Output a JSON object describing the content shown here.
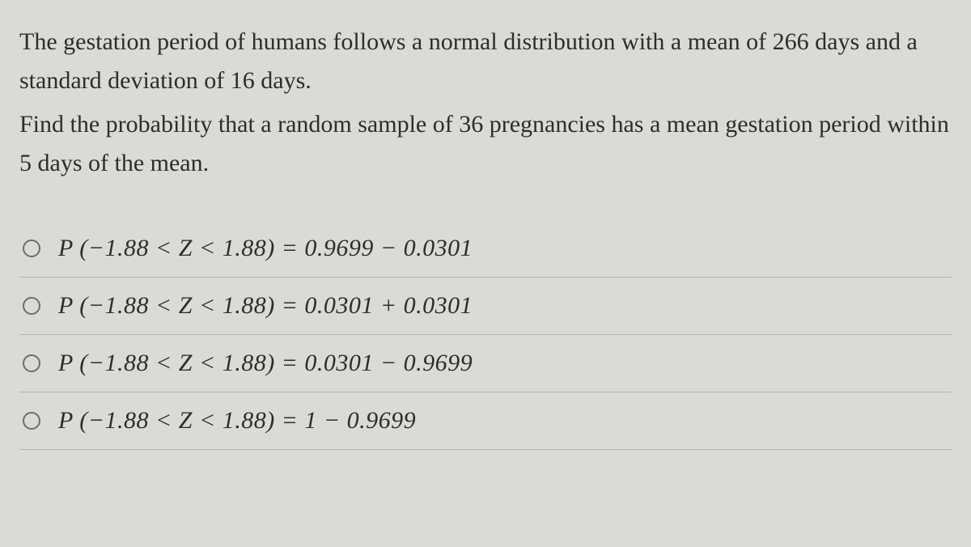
{
  "question": {
    "para1": "The gestation period of humans follows a normal distribution with a mean of 266 days and a standard deviation of 16 days.",
    "para2": "Find the probability that a random sample of 36 pregnancies has a mean gestation period within 5 days of the mean."
  },
  "options": [
    {
      "text": "P (−1.88 < Z < 1.88) = 0.9699 − 0.0301"
    },
    {
      "text": "P (−1.88 < Z < 1.88) = 0.0301 + 0.0301"
    },
    {
      "text": "P (−1.88 < Z < 1.88) = 0.0301 − 0.9699"
    },
    {
      "text": "P (−1.88 < Z < 1.88) = 1 − 0.9699"
    }
  ],
  "styles": {
    "background_color": "#dcdad5",
    "text_color": "#2d2d2d",
    "divider_color": "#b8b6b1",
    "radio_border": "#6d6d6d",
    "question_fontsize": 30,
    "option_fontsize": 30
  }
}
